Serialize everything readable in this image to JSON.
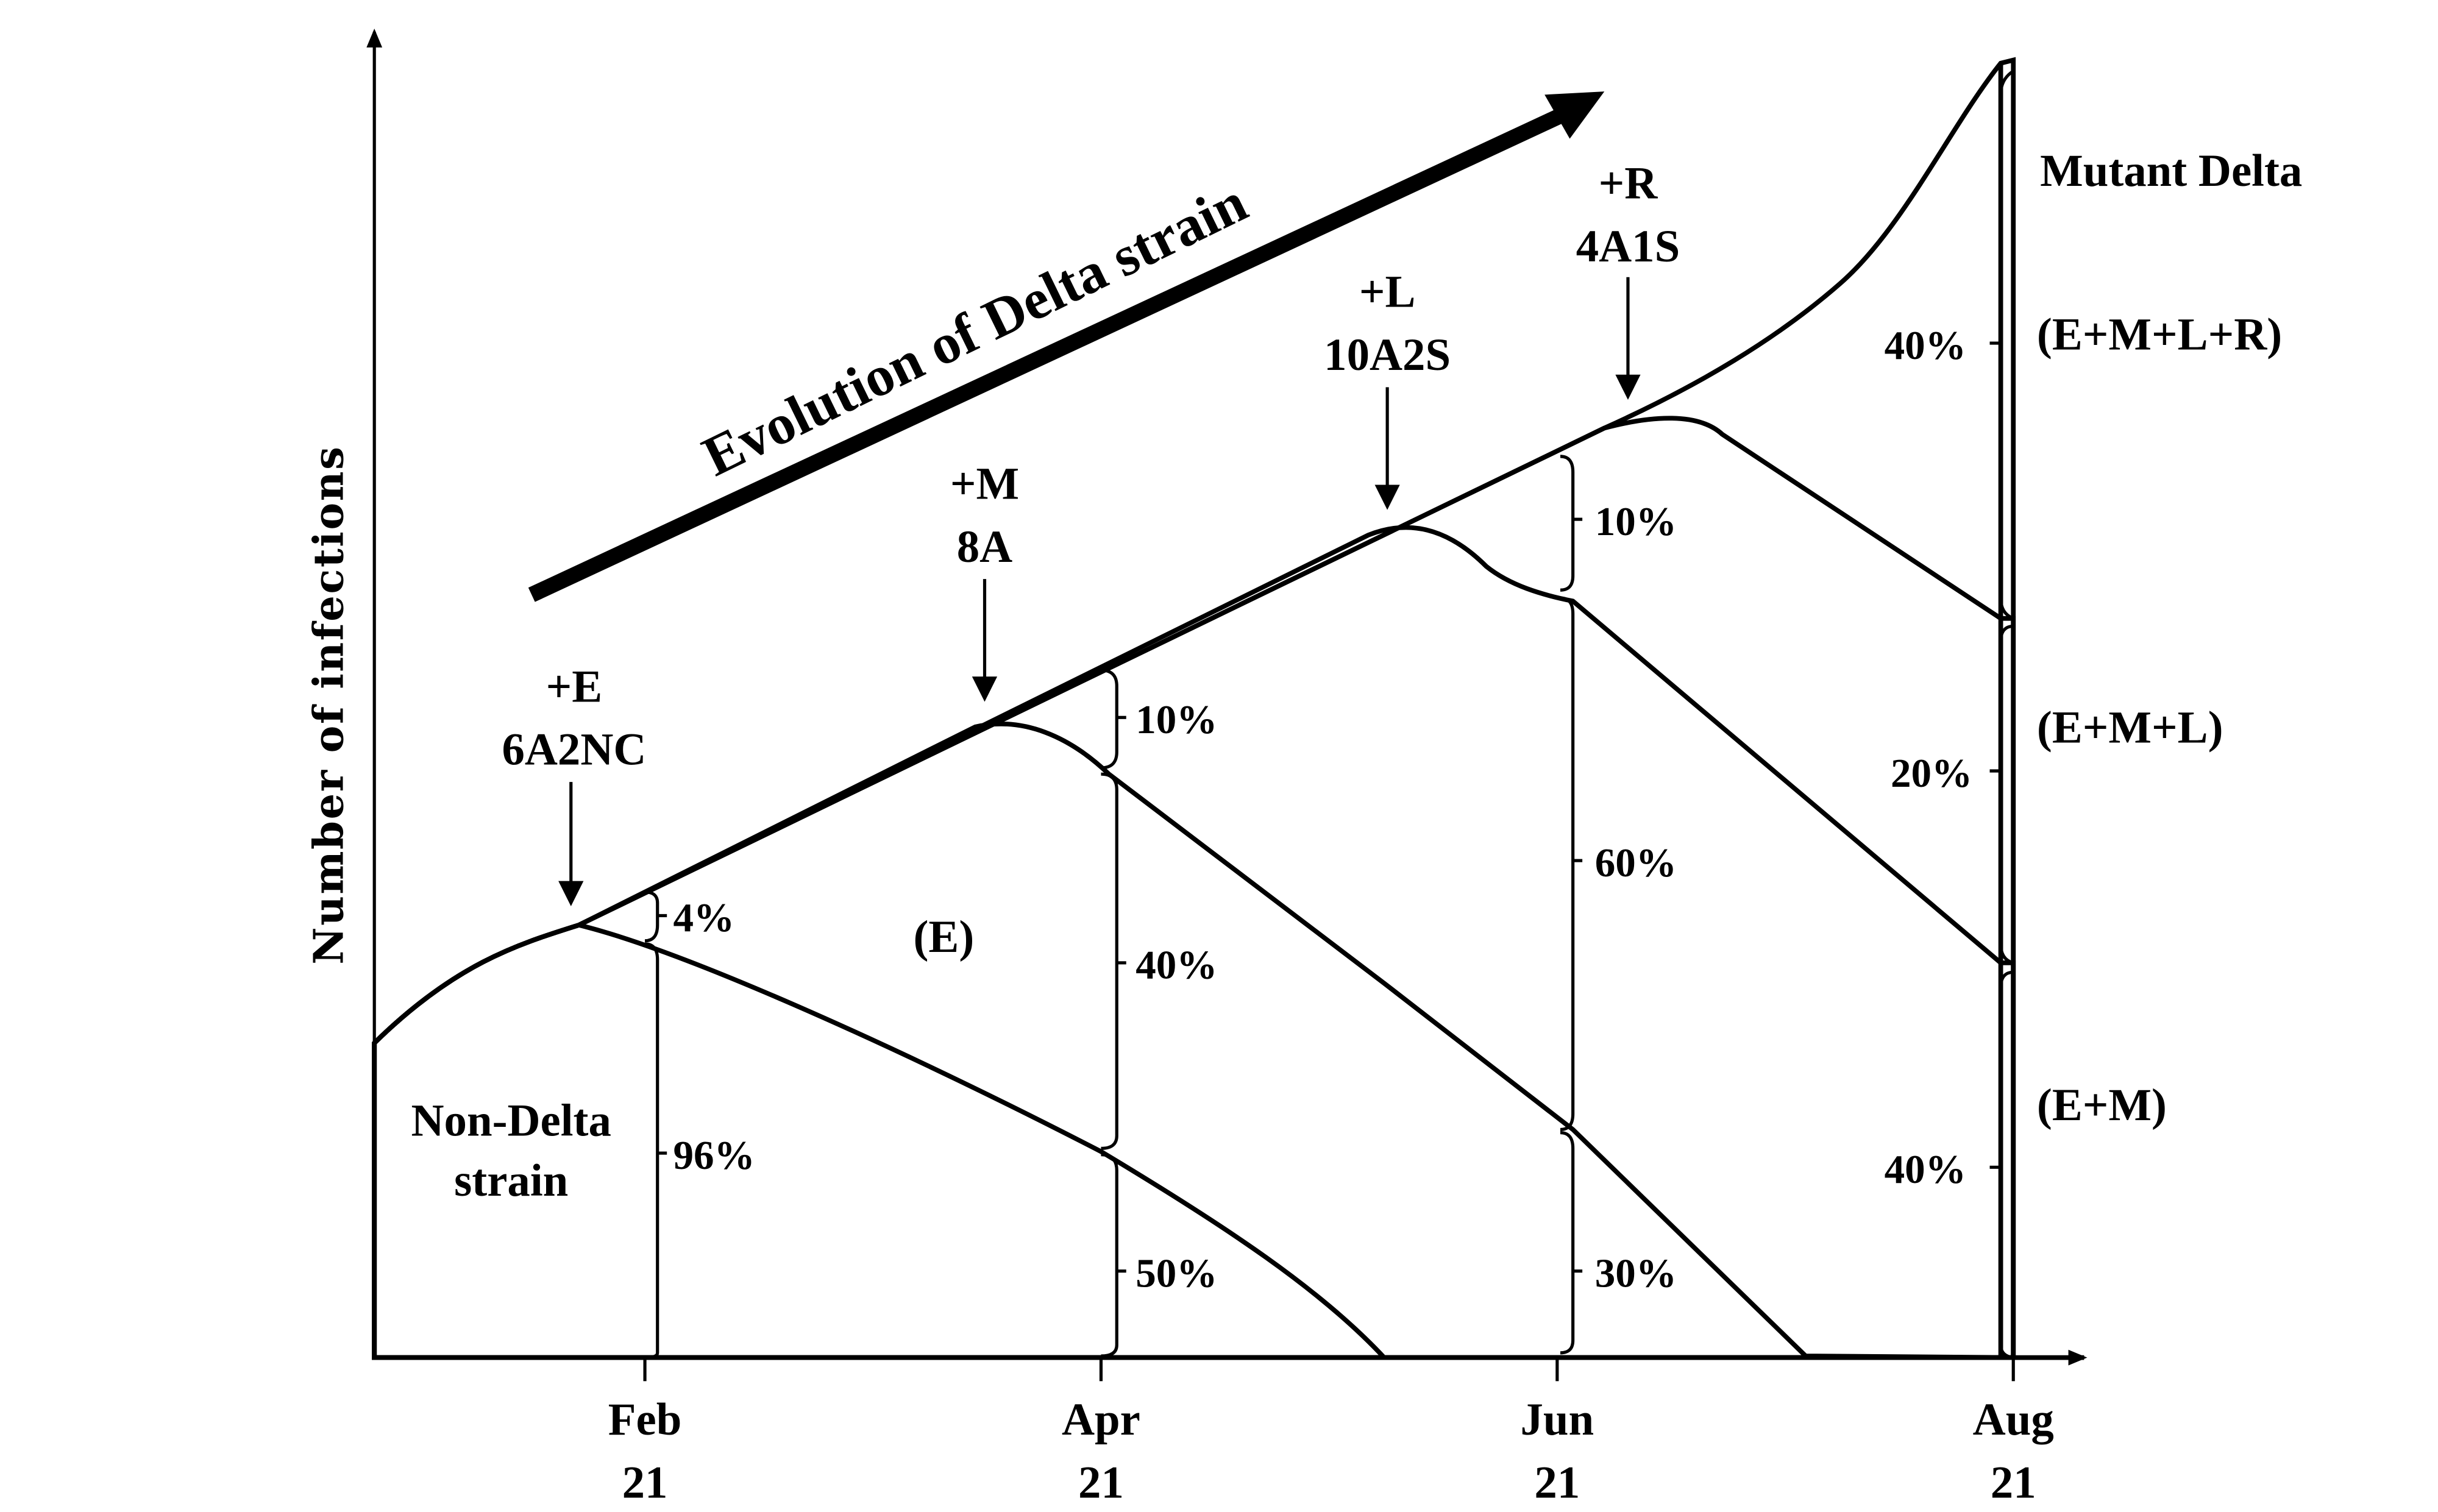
{
  "title": "Evolution of Delta strain",
  "y_axis_label": "Number of infections",
  "x_ticks": [
    {
      "month": "Feb",
      "year": "21"
    },
    {
      "month": "Apr",
      "year": "21"
    },
    {
      "month": "Jun",
      "year": "21"
    },
    {
      "month": "Aug",
      "year": "21"
    }
  ],
  "mutations": [
    {
      "name": "+E",
      "code": "6A2NC"
    },
    {
      "name": "+M",
      "code": "8A"
    },
    {
      "name": "+L",
      "code": "10A2S"
    },
    {
      "name": "+R",
      "code": "4A1S"
    }
  ],
  "regions": {
    "non_delta": {
      "line1": "Non-Delta",
      "line2": "strain",
      "color": "#00b0f0"
    },
    "e": {
      "label": "(E)",
      "color": "#fcc8c8"
    },
    "em": {
      "label": "(E+M)",
      "color": "#fa9a9a"
    },
    "eml": {
      "label": "(E+M+L)",
      "color": "#ff6666"
    },
    "emlr": {
      "label": "(E+M+L+R)",
      "color": "#ff0000"
    },
    "mutant": "Mutant Delta"
  },
  "percentages": {
    "feb": [
      "4%",
      "96%"
    ],
    "apr": [
      "10%",
      "40%",
      "50%"
    ],
    "jun": [
      "10%",
      "60%",
      "30%"
    ],
    "aug": [
      "40%",
      "20%",
      "40%"
    ]
  }
}
